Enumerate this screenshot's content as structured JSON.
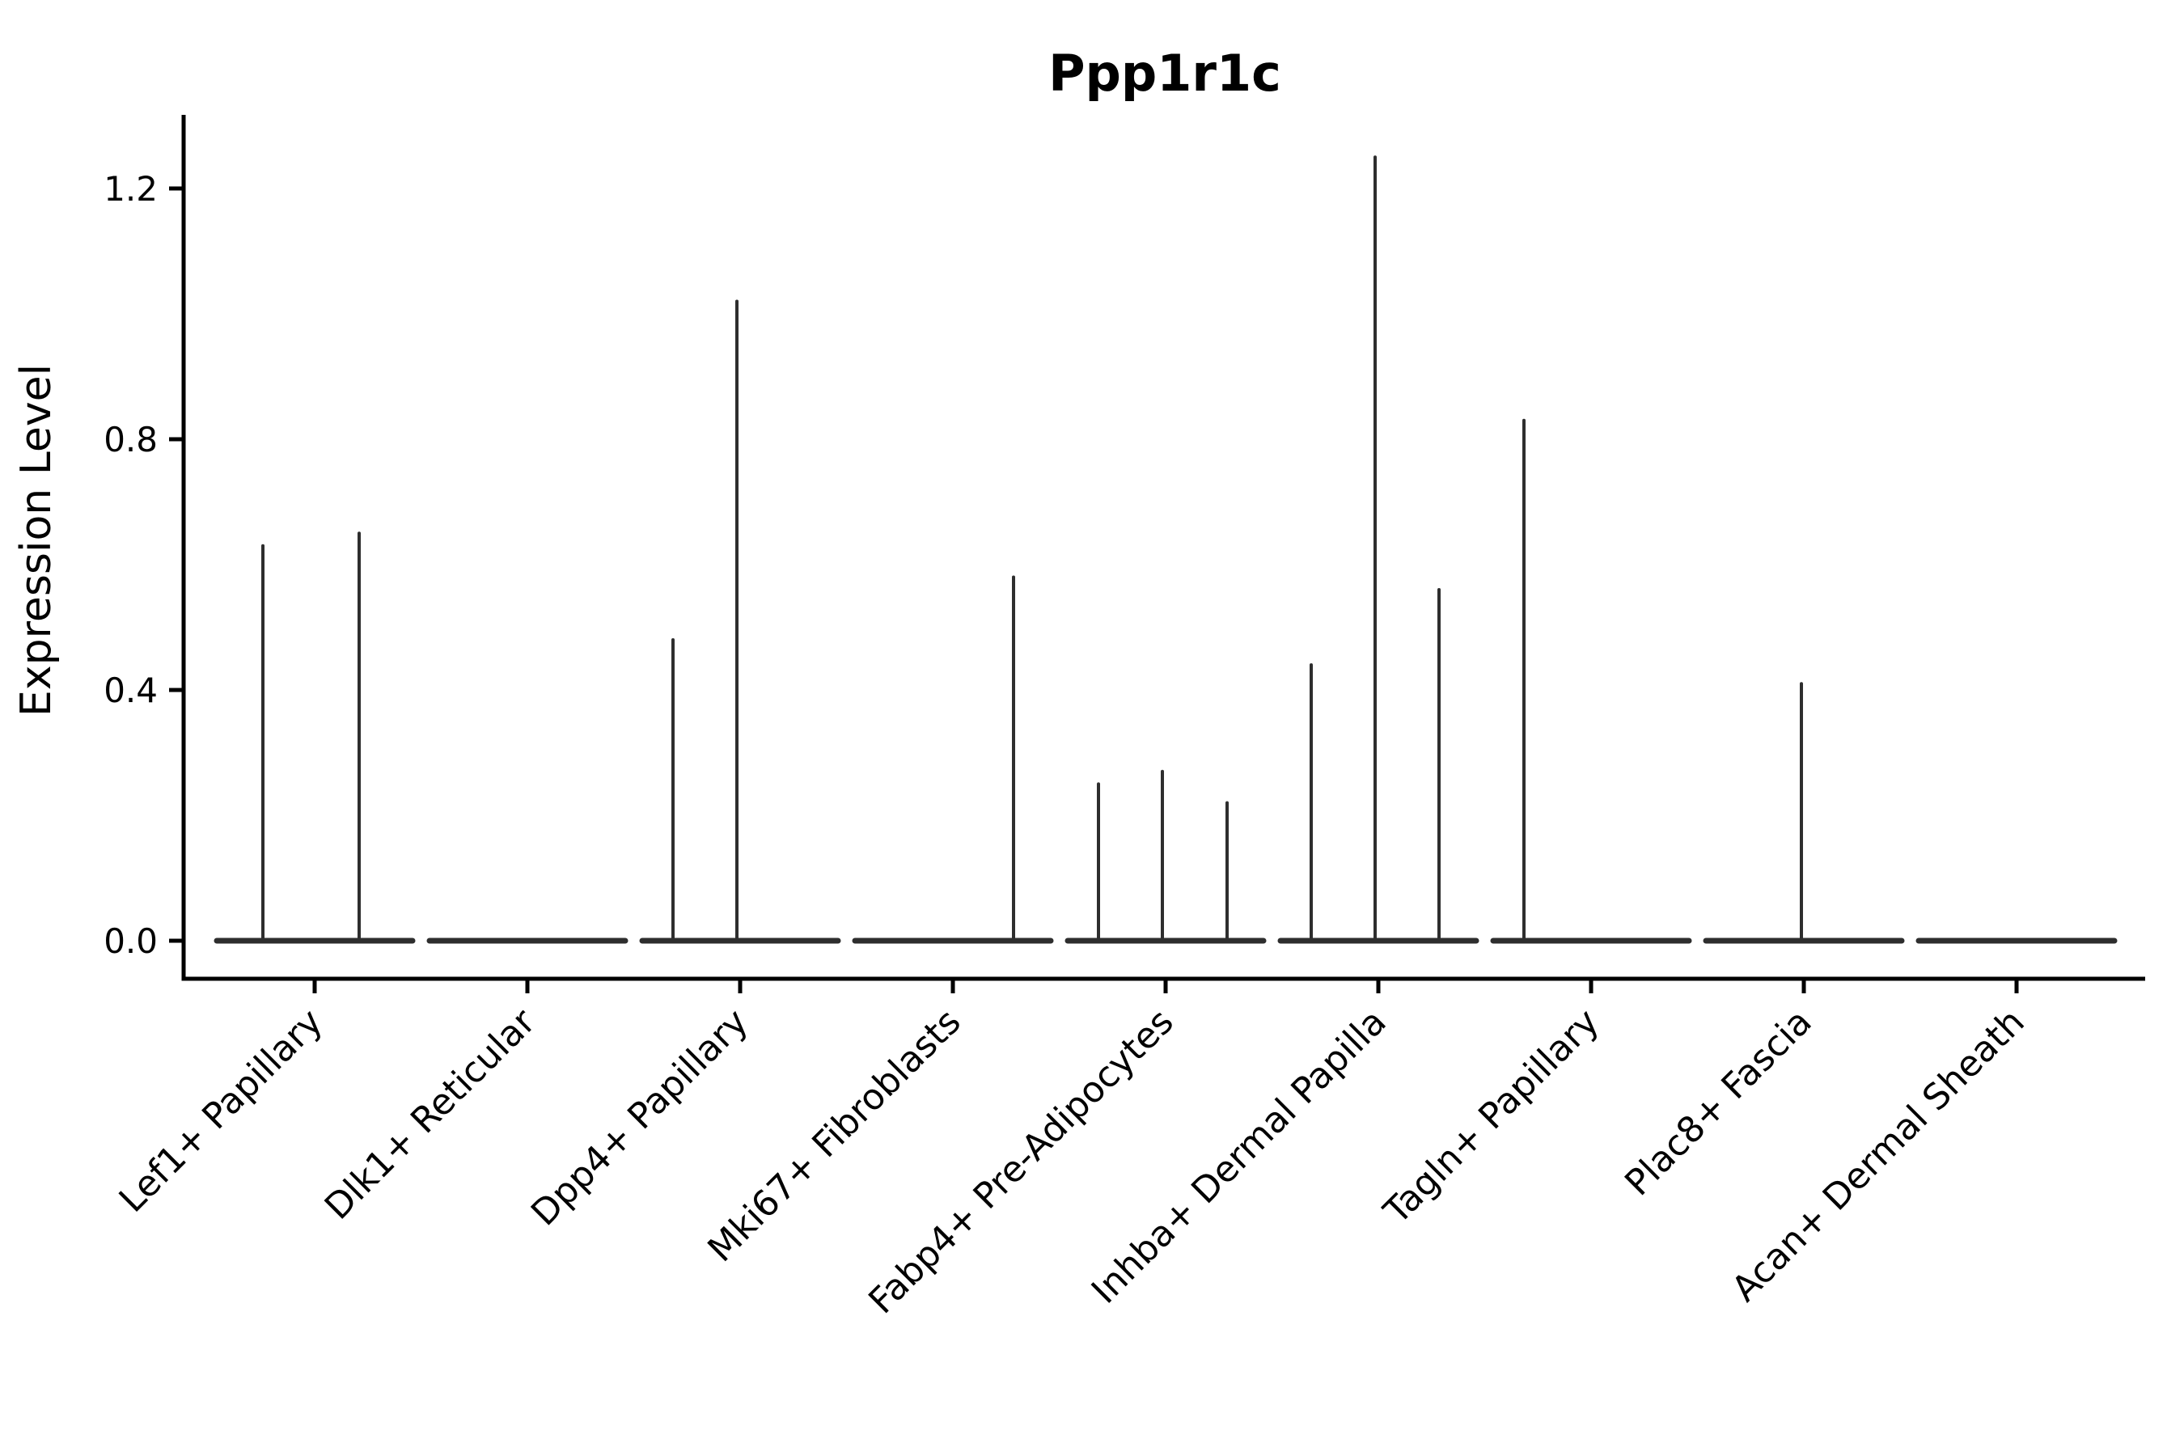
{
  "chart_data": {
    "type": "violin",
    "title": "Ppp1r1c",
    "xlabel": "",
    "ylabel": "Expression Level",
    "ylim": [
      -0.06,
      1.32
    ],
    "grid": false,
    "legend": "none",
    "yticks": [
      {
        "value": 0.0,
        "label": "0.0"
      },
      {
        "value": 0.4,
        "label": "0.4"
      },
      {
        "value": 0.8,
        "label": "0.8"
      },
      {
        "value": 1.2,
        "label": "1.2"
      }
    ],
    "categories": [
      "Lef1+ Papillary",
      "Dlk1+ Reticular",
      "Dpp4+ Papillary",
      "Mki67+ Fibroblasts",
      "Fabp4+ Pre-Adipocytes",
      "Inhba+ Dermal Papilla",
      "Tagln+ Papillary",
      "Plac8+ Fascia",
      "Acan+ Dermal Sheath"
    ],
    "violins": [
      {
        "category": "Lef1+ Papillary",
        "baseline_value": 0.0,
        "spikes": [
          {
            "dx": -64,
            "max": 0.63
          },
          {
            "dx": 55,
            "max": 0.65
          }
        ]
      },
      {
        "category": "Dlk1+ Reticular",
        "baseline_value": 0.0,
        "spikes": []
      },
      {
        "category": "Dpp4+ Papillary",
        "baseline_value": 0.0,
        "spikes": [
          {
            "dx": -83,
            "max": 0.48
          },
          {
            "dx": -4,
            "max": 1.02
          }
        ]
      },
      {
        "category": "Mki67+ Fibroblasts",
        "baseline_value": 0.0,
        "spikes": [
          {
            "dx": 75,
            "max": 0.58
          }
        ]
      },
      {
        "category": "Fabp4+ Pre-Adipocytes",
        "baseline_value": 0.0,
        "spikes": [
          {
            "dx": -83,
            "max": 0.25
          },
          {
            "dx": -4,
            "max": 0.27
          },
          {
            "dx": 76,
            "max": 0.22
          }
        ]
      },
      {
        "category": "Inhba+ Dermal Papilla",
        "baseline_value": 0.0,
        "spikes": [
          {
            "dx": -83,
            "max": 0.44
          },
          {
            "dx": -4,
            "max": 1.25
          },
          {
            "dx": 75,
            "max": 0.56
          }
        ]
      },
      {
        "category": "Tagln+ Papillary",
        "baseline_value": 0.0,
        "spikes": [
          {
            "dx": -83,
            "max": 0.83
          }
        ]
      },
      {
        "category": "Plac8+ Fascia",
        "baseline_value": 0.0,
        "spikes": [
          {
            "dx": -3,
            "max": 0.41
          }
        ]
      },
      {
        "category": "Acan+ Dermal Sheath",
        "baseline_value": 0.0,
        "spikes": []
      }
    ],
    "colors": {
      "violin_stroke": "#2e2e2e",
      "axis": "#000000",
      "text": "#000000",
      "background": "#ffffff"
    }
  }
}
